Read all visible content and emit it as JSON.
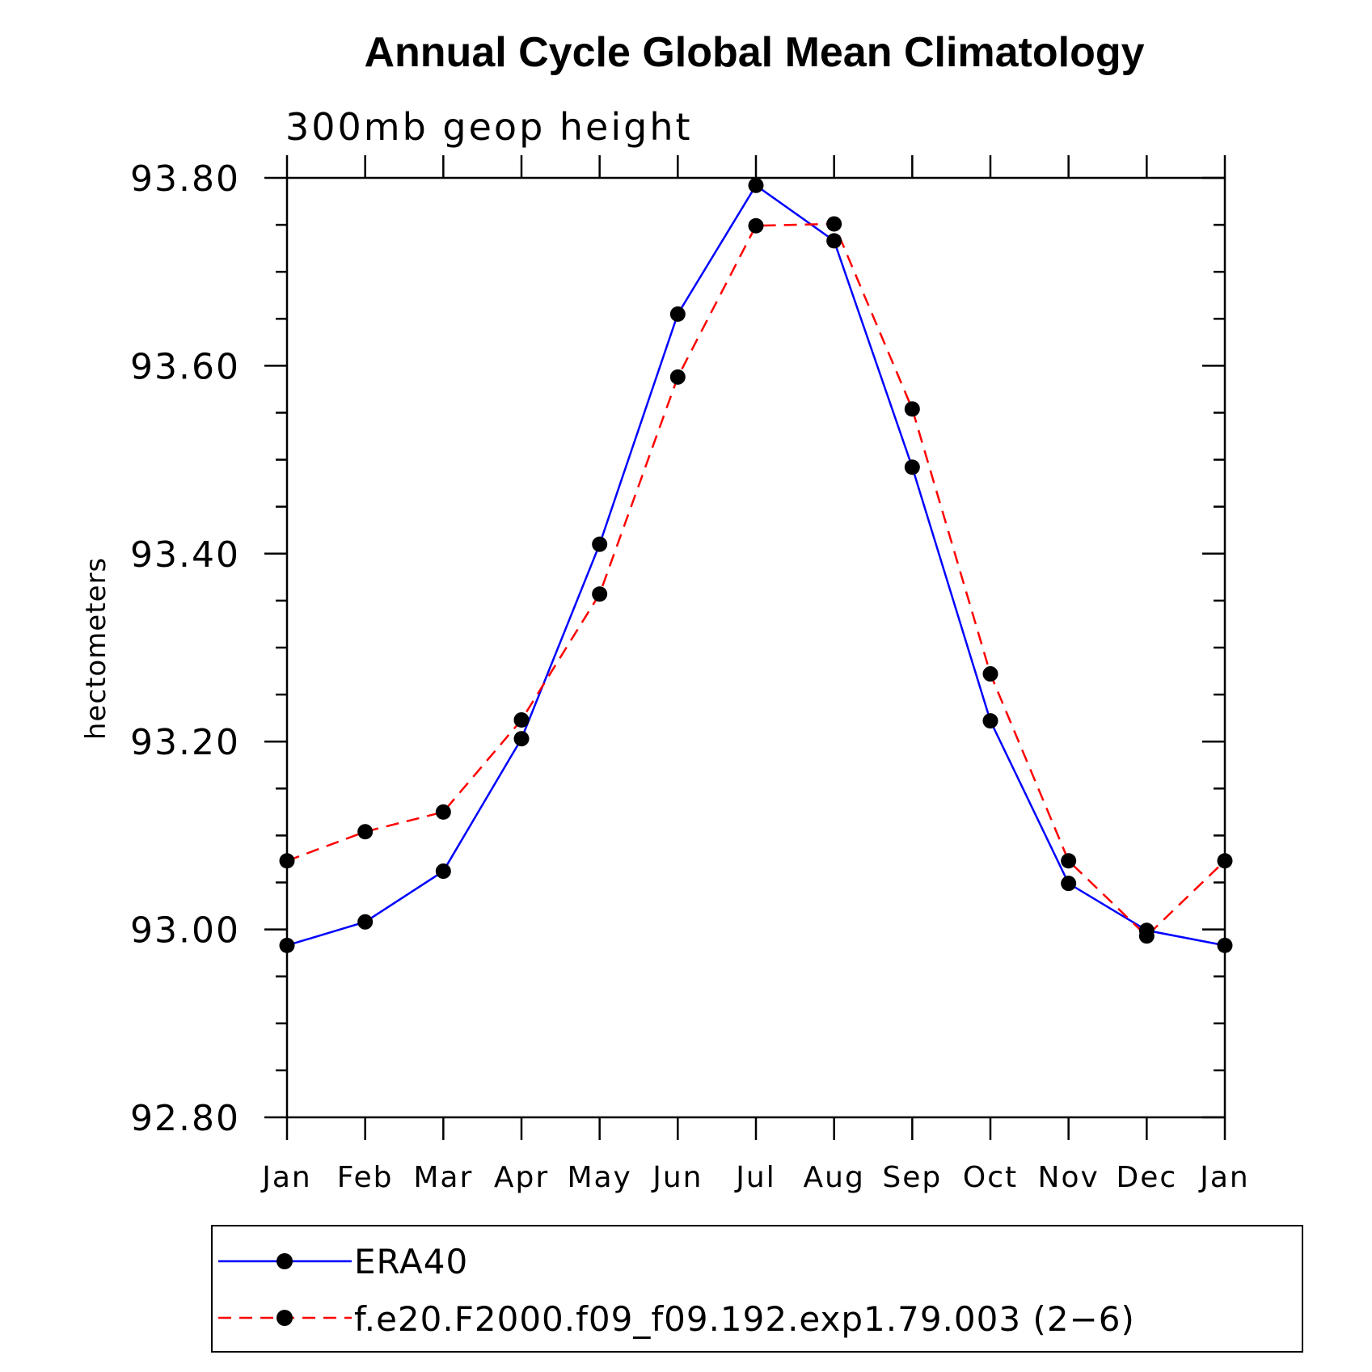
{
  "chart_data": {
    "type": "line",
    "title": "Annual Cycle Global Mean Climatology",
    "subtitle": "300mb geop height",
    "ylabel": "hectometers",
    "xlabel": "",
    "categories": [
      "Jan",
      "Feb",
      "Mar",
      "Apr",
      "May",
      "Jun",
      "Jul",
      "Aug",
      "Sep",
      "Oct",
      "Nov",
      "Dec",
      "Jan"
    ],
    "ylim": [
      92.8,
      93.8
    ],
    "yticks": [
      "92.80",
      "93.00",
      "93.20",
      "93.40",
      "93.60",
      "93.80"
    ],
    "series": [
      {
        "name": "ERA40",
        "color": "#0000ff",
        "style": "solid",
        "values": [
          92.983,
          93.008,
          93.062,
          93.203,
          93.41,
          93.655,
          93.792,
          93.733,
          93.492,
          93.222,
          93.049,
          92.999,
          92.983
        ]
      },
      {
        "name": "f.e20.F2000.f09_f09.192.exp1.79.003 (2−6)",
        "color": "#ff0000",
        "style": "dashed",
        "values": [
          93.073,
          93.104,
          93.125,
          93.223,
          93.357,
          93.588,
          93.749,
          93.751,
          93.554,
          93.272,
          93.073,
          92.993,
          93.073
        ]
      }
    ],
    "legend": {
      "position": "bottom"
    }
  }
}
